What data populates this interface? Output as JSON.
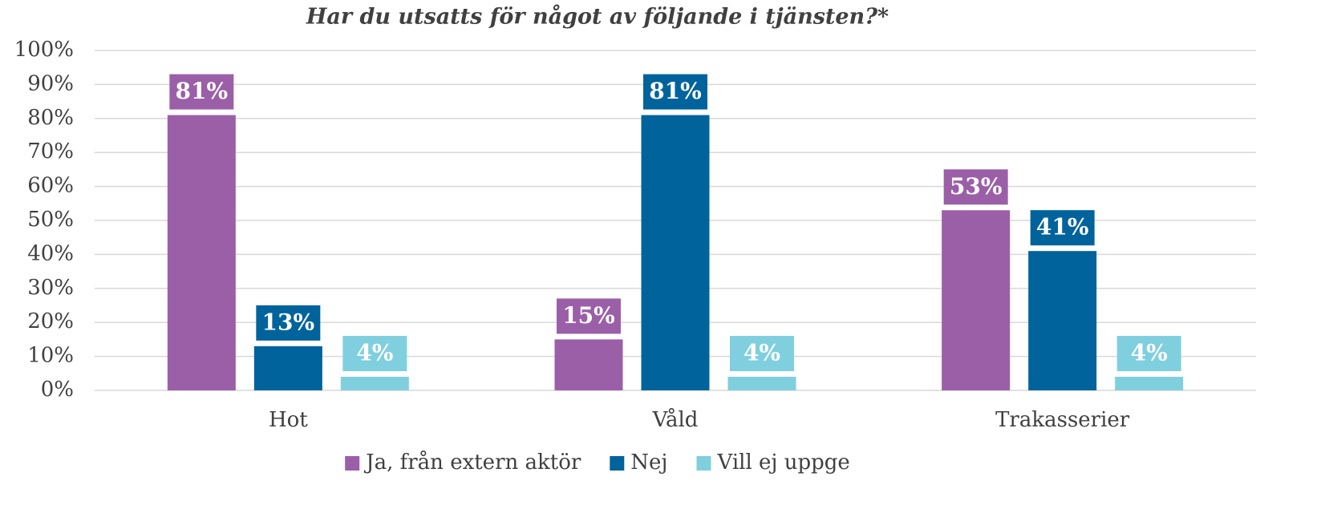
{
  "chart_data": {
    "type": "bar",
    "title": "Har du utsatts för något av följande i tjänsten?*",
    "categories": [
      "Hot",
      "Våld",
      "Trakasserier"
    ],
    "series": [
      {
        "name": "Ja, från extern aktör",
        "color": "#9b5fa8",
        "values": [
          81,
          15,
          53
        ],
        "value_labels": [
          "81%",
          "15%",
          "53%"
        ]
      },
      {
        "name": "Nej",
        "color": "#00639c",
        "values": [
          13,
          81,
          41
        ],
        "value_labels": [
          "13%",
          "81%",
          "41%"
        ]
      },
      {
        "name": "Vill ej uppge",
        "color": "#7fcfdf",
        "values": [
          4,
          4,
          4
        ],
        "value_labels": [
          "4%",
          "4%",
          "4%"
        ]
      }
    ],
    "ylim": [
      0,
      100
    ],
    "yticks": [
      {
        "value": 0,
        "label": "0%"
      },
      {
        "value": 10,
        "label": "10%"
      },
      {
        "value": 20,
        "label": "20%"
      },
      {
        "value": 30,
        "label": "30%"
      },
      {
        "value": 40,
        "label": "40%"
      },
      {
        "value": 50,
        "label": "50%"
      },
      {
        "value": 60,
        "label": "60%"
      },
      {
        "value": 70,
        "label": "70%"
      },
      {
        "value": 80,
        "label": "80%"
      },
      {
        "value": 90,
        "label": "90%"
      },
      {
        "value": 100,
        "label": "100%"
      }
    ],
    "grid": true,
    "legend": "bottom"
  }
}
